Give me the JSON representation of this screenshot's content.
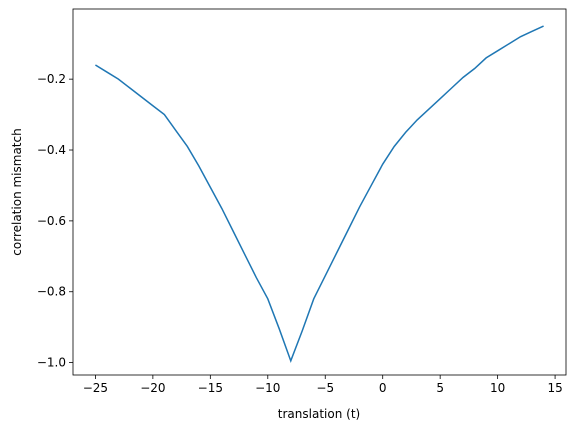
{
  "chart_data": {
    "type": "line",
    "xlabel": "translation (t)",
    "ylabel": "correlation mismatch",
    "x": [
      -25,
      -24,
      -23,
      -22,
      -21,
      -20,
      -19,
      -18,
      -17,
      -16,
      -15,
      -14,
      -13,
      -12,
      -11,
      -10,
      -9,
      -8,
      -7,
      -6,
      -5,
      -4,
      -3,
      -2,
      -1,
      0,
      1,
      2,
      3,
      4,
      5,
      6,
      7,
      8,
      9,
      10,
      11,
      12,
      13,
      14
    ],
    "series": [
      {
        "color": "#1f77b4",
        "values": [
          -0.16,
          -0.18,
          -0.2,
          -0.225,
          -0.25,
          -0.275,
          -0.3,
          -0.345,
          -0.39,
          -0.445,
          -0.505,
          -0.565,
          -0.63,
          -0.695,
          -0.76,
          -0.82,
          -0.905,
          -0.995,
          -0.91,
          -0.82,
          -0.755,
          -0.69,
          -0.625,
          -0.56,
          -0.5,
          -0.44,
          -0.39,
          -0.35,
          -0.315,
          -0.285,
          -0.255,
          -0.225,
          -0.195,
          -0.17,
          -0.14,
          -0.12,
          -0.1,
          -0.08,
          -0.065,
          -0.05
        ]
      }
    ],
    "xlim": [
      -26.95,
      15.95
    ],
    "xticks": [
      {
        "value": -25,
        "label": "−25"
      },
      {
        "value": -20,
        "label": "−20"
      },
      {
        "value": -15,
        "label": "−15"
      },
      {
        "value": -10,
        "label": "−10"
      },
      {
        "value": -5,
        "label": "−5"
      },
      0,
      5,
      10,
      15
    ],
    "ylim": [
      -1.035,
      -0.002
    ],
    "yticks": [
      {
        "value": -1.0,
        "label": "−1.0"
      },
      {
        "value": -0.8,
        "label": "−0.8"
      },
      {
        "value": -0.6,
        "label": "−0.6"
      },
      {
        "value": -0.4,
        "label": "−0.4"
      },
      {
        "value": -0.2,
        "label": "−0.2"
      }
    ]
  }
}
